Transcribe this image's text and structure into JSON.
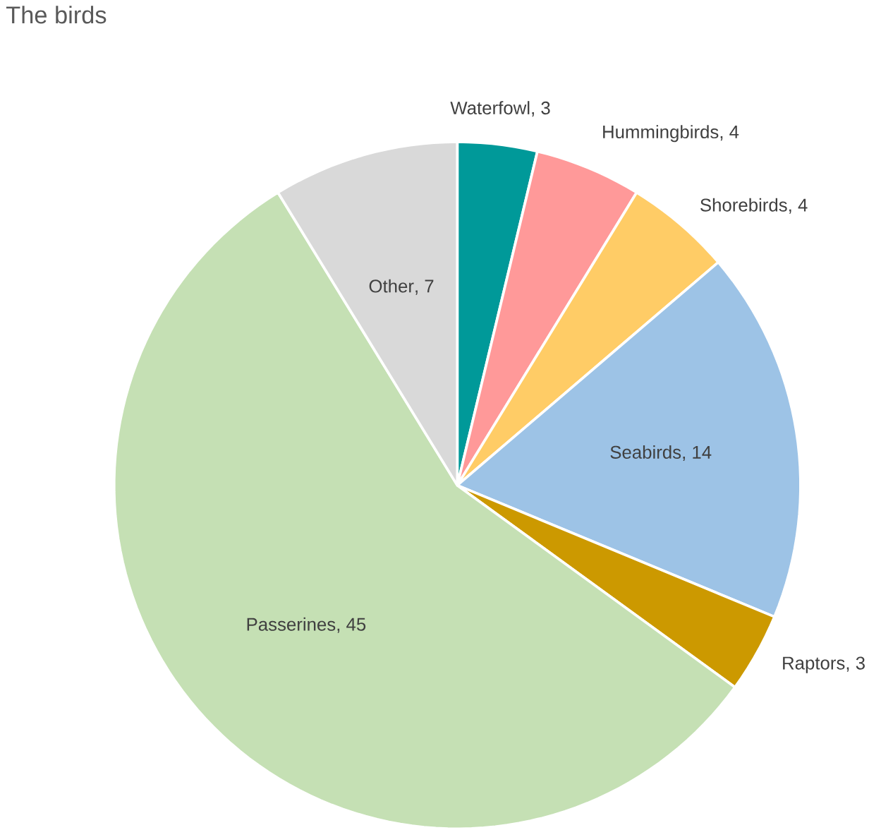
{
  "chart_data": {
    "type": "pie",
    "title": "The birds",
    "categories": [
      "Waterfowl",
      "Hummingbirds",
      "Shorebirds",
      "Seabirds",
      "Raptors",
      "Passerines",
      "Other"
    ],
    "values": [
      3,
      4,
      4,
      14,
      3,
      45,
      7
    ],
    "colors": [
      "#009999",
      "#ff9999",
      "#ffcc66",
      "#9dc3e6",
      "#cc9900",
      "#c5e0b4",
      "#d9d9d9"
    ],
    "value_labels": [
      ", 3",
      ", 4",
      ", 4",
      ", 14",
      ", 3",
      ", 45",
      ", 7"
    ]
  }
}
